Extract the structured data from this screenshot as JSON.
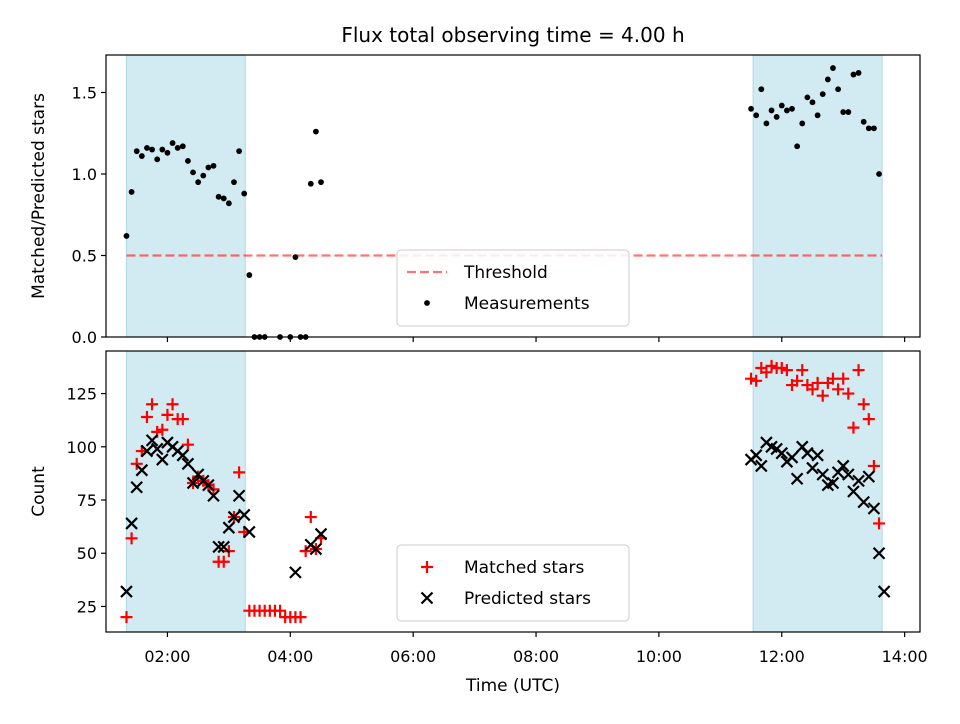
{
  "figure": {
    "title": "Flux total observing time = 4.00 h",
    "xlabel": "Time (UTC)",
    "x_ticks": [
      "02:00",
      "04:00",
      "06:00",
      "08:00",
      "10:00",
      "12:00",
      "14:00"
    ]
  },
  "colors": {
    "shade": "#add8e6",
    "threshold": "#ff0000",
    "measurement": "#000000",
    "matched": "#ff0000",
    "predicted": "#000000"
  },
  "chart_data": [
    {
      "type": "scatter",
      "ylabel": "Matched/Predicted stars",
      "xlim": [
        "01:00",
        "14:15"
      ],
      "ylim": [
        0,
        1.73
      ],
      "y_ticks": [
        "0.0",
        "0.5",
        "1.0",
        "1.5"
      ],
      "shaded_intervals": [
        [
          "01:20",
          "03:16"
        ],
        [
          "11:32",
          "13:38"
        ]
      ],
      "threshold": {
        "name": "Threshold",
        "value": 0.5,
        "x": [
          "01:20",
          "13:38"
        ]
      },
      "legend_position": "lower center",
      "series": [
        {
          "name": "Measurements",
          "marker": "dot",
          "x": [
            "01:20",
            "01:25",
            "01:30",
            "01:35",
            "01:40",
            "01:45",
            "01:50",
            "01:55",
            "02:00",
            "02:05",
            "02:10",
            "02:15",
            "02:20",
            "02:25",
            "02:30",
            "02:35",
            "02:40",
            "02:45",
            "02:50",
            "02:55",
            "03:00",
            "03:05",
            "03:10",
            "03:15",
            "03:20",
            "03:25",
            "03:30",
            "03:35",
            "03:50",
            "04:00",
            "04:05",
            "04:10",
            "04:15",
            "04:20",
            "04:25",
            "04:30",
            "11:30",
            "11:35",
            "11:40",
            "11:45",
            "11:50",
            "11:55",
            "12:00",
            "12:05",
            "12:10",
            "12:15",
            "12:20",
            "12:25",
            "12:30",
            "12:35",
            "12:40",
            "12:45",
            "12:50",
            "12:55",
            "13:00",
            "13:05",
            "13:10",
            "13:15",
            "13:20",
            "13:25",
            "13:30",
            "13:35"
          ],
          "y": [
            0.62,
            0.89,
            1.14,
            1.11,
            1.16,
            1.15,
            1.09,
            1.15,
            1.13,
            1.19,
            1.16,
            1.17,
            1.08,
            1.01,
            0.95,
            0.99,
            1.04,
            1.05,
            0.86,
            0.85,
            0.82,
            0.95,
            1.14,
            0.88,
            0.38,
            0,
            0,
            0,
            0,
            0,
            0.49,
            0,
            0,
            0.94,
            1.26,
            0.95,
            1.4,
            1.36,
            1.52,
            1.31,
            1.39,
            1.35,
            1.42,
            1.39,
            1.4,
            1.17,
            1.31,
            1.47,
            1.44,
            1.36,
            1.49,
            1.58,
            1.65,
            1.52,
            1.38,
            1.38,
            1.61,
            1.62,
            1.32,
            1.28,
            1.28,
            1.0
          ]
        }
      ]
    },
    {
      "type": "scatter",
      "ylabel": "Count",
      "xlim": [
        "01:00",
        "14:15"
      ],
      "ylim": [
        13,
        145
      ],
      "y_ticks": [
        "25",
        "50",
        "75",
        "100",
        "125"
      ],
      "shaded_intervals": [
        [
          "01:20",
          "03:16"
        ],
        [
          "11:32",
          "13:38"
        ]
      ],
      "legend_position": "lower center",
      "series": [
        {
          "name": "Matched stars",
          "marker": "plus",
          "x": [
            "01:20",
            "01:25",
            "01:30",
            "01:35",
            "01:40",
            "01:45",
            "01:50",
            "01:55",
            "02:00",
            "02:05",
            "02:10",
            "02:15",
            "02:20",
            "02:25",
            "02:30",
            "02:35",
            "02:40",
            "02:45",
            "02:50",
            "02:55",
            "03:00",
            "03:05",
            "03:10",
            "03:15",
            "03:20",
            "03:25",
            "03:30",
            "03:35",
            "03:40",
            "03:45",
            "03:50",
            "03:55",
            "04:00",
            "04:05",
            "04:10",
            "04:15",
            "04:20",
            "04:25",
            "04:30",
            "11:30",
            "11:35",
            "11:40",
            "11:45",
            "11:50",
            "11:55",
            "12:00",
            "12:05",
            "12:10",
            "12:15",
            "12:20",
            "12:25",
            "12:30",
            "12:35",
            "12:40",
            "12:45",
            "12:50",
            "12:55",
            "13:00",
            "13:05",
            "13:10",
            "13:15",
            "13:20",
            "13:25",
            "13:30",
            "13:35"
          ],
          "y": [
            20,
            57,
            92,
            98,
            114,
            120,
            107,
            108,
            115,
            120,
            113,
            113,
            101,
            83,
            86,
            84,
            82,
            80,
            46,
            46,
            51,
            67,
            88,
            60,
            23,
            23,
            23,
            23,
            23,
            23,
            23,
            20,
            20,
            20,
            20,
            51,
            67,
            52,
            57,
            132,
            131,
            137,
            135,
            138,
            137,
            137,
            136,
            129,
            131,
            136,
            129,
            127,
            130,
            124,
            130,
            132,
            127,
            132,
            125,
            109,
            136,
            120,
            113,
            91,
            64
          ]
        },
        {
          "name": "Predicted stars",
          "marker": "x",
          "x": [
            "01:20",
            "01:25",
            "01:30",
            "01:35",
            "01:40",
            "01:45",
            "01:50",
            "01:55",
            "02:00",
            "02:05",
            "02:10",
            "02:15",
            "02:20",
            "02:25",
            "02:30",
            "02:35",
            "02:40",
            "02:45",
            "02:50",
            "02:55",
            "03:00",
            "03:05",
            "03:10",
            "03:15",
            "03:20",
            "04:05",
            "04:20",
            "04:25",
            "04:30",
            "11:30",
            "11:35",
            "11:40",
            "11:45",
            "11:50",
            "11:55",
            "12:00",
            "12:05",
            "12:10",
            "12:15",
            "12:20",
            "12:25",
            "12:30",
            "12:35",
            "12:40",
            "12:45",
            "12:50",
            "12:55",
            "13:00",
            "13:05",
            "13:10",
            "13:15",
            "13:20",
            "13:25",
            "13:30",
            "13:35",
            "13:40"
          ],
          "y": [
            32,
            64,
            81,
            89,
            98,
            103,
            99,
            94,
            102,
            100,
            98,
            96,
            92,
            83,
            87,
            84,
            82,
            77,
            53,
            53,
            62,
            67,
            77,
            68,
            60,
            41,
            54,
            52,
            59,
            94,
            96,
            91,
            102,
            100,
            99,
            97,
            93,
            95,
            85,
            100,
            97,
            90,
            96,
            87,
            82,
            83,
            88,
            91,
            87,
            79,
            84,
            74,
            86,
            71,
            50,
            32
          ]
        }
      ]
    }
  ]
}
